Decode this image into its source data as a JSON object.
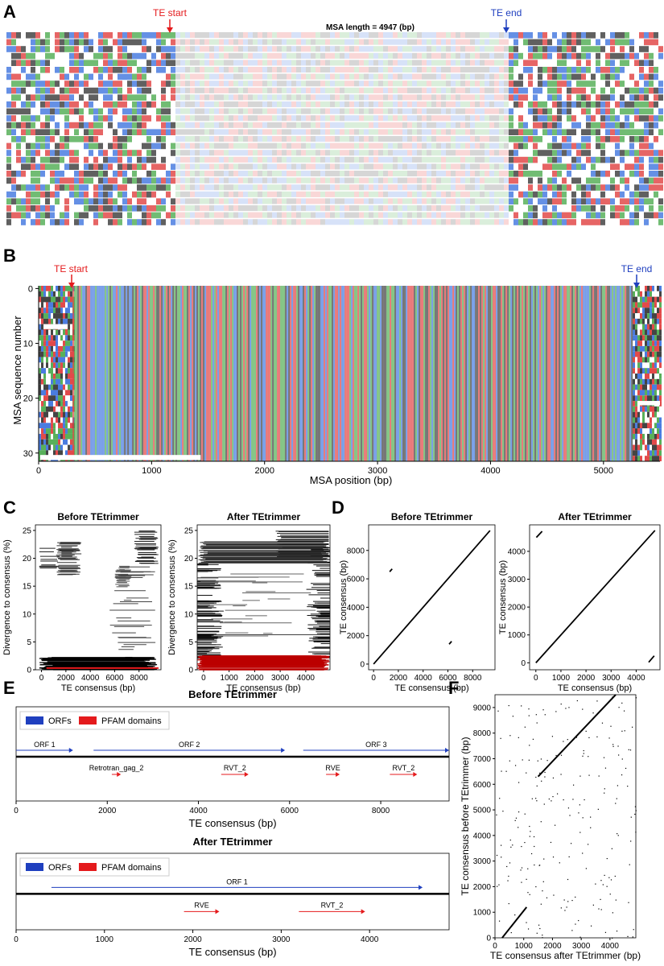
{
  "panels": [
    "A",
    "B",
    "C",
    "D",
    "E",
    "F"
  ],
  "colors": {
    "A": "#58b05a",
    "C": "#4a7ce0",
    "G": "#444444",
    "T": "#e24a4a",
    "gap": "#ffffff",
    "start": "#e41a1c",
    "end": "#1f3fbf",
    "orf": "#1f3fbf",
    "pfam": "#e41a1c"
  },
  "A": {
    "msa_length_label": "MSA length = 4947 (bp)",
    "te_start": "TE start",
    "te_end": "TE end"
  },
  "B": {
    "te_start": "TE start",
    "te_end": "TE end",
    "xlabel": "MSA position (bp)",
    "ylabel": "MSA sequence number",
    "xticks": [
      "0",
      "1000",
      "2000",
      "3000",
      "4000",
      "5000"
    ],
    "yticks": [
      "0",
      "10",
      "20",
      "30"
    ]
  },
  "chart_data": [
    {
      "id": "C-before",
      "type": "scatter",
      "title": "Before TEtrimmer",
      "xlabel": "TE consensus (bp)",
      "ylabel": "Divergence to consensus (%)",
      "xlim": [
        -500,
        9800
      ],
      "ylim": [
        0,
        26
      ],
      "xticks": [
        0,
        2000,
        4000,
        6000,
        8000
      ],
      "yticks": [
        0,
        5,
        10,
        15,
        20,
        25
      ],
      "xtick_labels": [
        "0",
        "2000",
        "4000",
        "6000",
        "8000"
      ],
      "ytick_labels": [
        "0",
        "5",
        "10",
        "15",
        "20",
        "25"
      ]
    },
    {
      "id": "C-after",
      "type": "scatter",
      "title": "After TEtrimmer",
      "xlabel": "TE consensus (bp)",
      "ylabel": "Divergence to consensus (%)",
      "xlim": [
        -250,
        4950
      ],
      "ylim": [
        0,
        26
      ],
      "xticks": [
        0,
        1000,
        2000,
        3000,
        4000
      ],
      "yticks": [
        0,
        5,
        10,
        15,
        20,
        25
      ],
      "xtick_labels": [
        "0",
        "1000",
        "2000",
        "3000",
        "4000"
      ],
      "ytick_labels": [
        "0",
        "5",
        "10",
        "15",
        "20",
        "25"
      ]
    },
    {
      "id": "D-before",
      "type": "line",
      "title": "Before TEtrimmer",
      "xlabel": "TE consensus (bp)",
      "ylabel": "TE consensus (bp)",
      "xlim": [
        -400,
        9800
      ],
      "ylim": [
        -400,
        9800
      ],
      "xticks": [
        0,
        2000,
        4000,
        6000,
        8000
      ],
      "yticks": [
        0,
        2000,
        4000,
        6000,
        8000
      ],
      "xtick_labels": [
        "0",
        "2000",
        "4000",
        "6000",
        "8000"
      ],
      "ytick_labels": [
        "0",
        "2000",
        "4000",
        "6000",
        "8000"
      ],
      "segments": [
        [
          0,
          0,
          9400,
          9400
        ],
        [
          1300,
          6500,
          1500,
          6700
        ],
        [
          6100,
          1400,
          6300,
          1600
        ]
      ]
    },
    {
      "id": "D-after",
      "type": "line",
      "title": "After TEtrimmer",
      "xlabel": "TE consensus (bp)",
      "ylabel": "TE consensus (bp)",
      "xlim": [
        -250,
        4950
      ],
      "ylim": [
        -250,
        4950
      ],
      "xticks": [
        0,
        1000,
        2000,
        3000,
        4000
      ],
      "yticks": [
        0,
        1000,
        2000,
        3000,
        4000
      ],
      "xtick_labels": [
        "0",
        "1000",
        "2000",
        "3000",
        "4000"
      ],
      "ytick_labels": [
        "0",
        "1000",
        "2000",
        "3000",
        "4000"
      ],
      "segments": [
        [
          0,
          0,
          4750,
          4750
        ],
        [
          20,
          4500,
          250,
          4720
        ],
        [
          4500,
          20,
          4720,
          250
        ]
      ]
    },
    {
      "id": "E-before",
      "type": "annotation-track",
      "title": "Before TEtrimmer",
      "xlabel": "TE consensus (bp)",
      "xlim": [
        0,
        9500
      ],
      "xticks": [
        0,
        2000,
        4000,
        6000,
        8000
      ],
      "xtick_labels": [
        "0",
        "2000",
        "4000",
        "6000",
        "8000"
      ],
      "legend": [
        "ORFs",
        "PFAM domains"
      ],
      "orfs": [
        {
          "name": "ORF 1",
          "start": 0,
          "end": 1250
        },
        {
          "name": "ORF 2",
          "start": 1700,
          "end": 5900
        },
        {
          "name": "ORF 3",
          "start": 6300,
          "end": 9500
        }
      ],
      "pfam": [
        {
          "name": "Retrotran_gag_2",
          "start": 2100,
          "end": 2300
        },
        {
          "name": "RVT_2",
          "start": 4500,
          "end": 5100
        },
        {
          "name": "RVE",
          "start": 6800,
          "end": 7100
        },
        {
          "name": "RVT_2",
          "start": 8200,
          "end": 8800
        }
      ]
    },
    {
      "id": "E-after",
      "type": "annotation-track",
      "title": "After TEtrimmer",
      "xlabel": "TE consensus (bp)",
      "xlim": [
        0,
        4900
      ],
      "xticks": [
        0,
        1000,
        2000,
        3000,
        4000
      ],
      "xtick_labels": [
        "0",
        "1000",
        "2000",
        "3000",
        "4000"
      ],
      "legend": [
        "ORFs",
        "PFAM domains"
      ],
      "orfs": [
        {
          "name": "ORF 1",
          "start": 400,
          "end": 4600
        }
      ],
      "pfam": [
        {
          "name": "RVE",
          "start": 1900,
          "end": 2300
        },
        {
          "name": "RVT_2",
          "start": 3200,
          "end": 3950
        }
      ]
    },
    {
      "id": "F",
      "type": "scatter",
      "xlabel": "TE consensus after TEtrimmer (bp)",
      "ylabel": "TE consensus before TEtrimmer (bp)",
      "xlim": [
        0,
        4900
      ],
      "ylim": [
        0,
        9500
      ],
      "xticks": [
        0,
        1000,
        2000,
        3000,
        4000
      ],
      "yticks": [
        0,
        1000,
        2000,
        3000,
        4000,
        5000,
        6000,
        7000,
        8000,
        9000
      ],
      "xtick_labels": [
        "0",
        "1000",
        "2000",
        "3000",
        "4000"
      ],
      "ytick_labels": [
        "0",
        "1000",
        "2000",
        "3000",
        "4000",
        "5000",
        "6000",
        "7000",
        "8000",
        "9000"
      ],
      "segments": [
        [
          250,
          0,
          1100,
          1200
        ],
        [
          1500,
          6300,
          4200,
          9500
        ]
      ]
    }
  ]
}
